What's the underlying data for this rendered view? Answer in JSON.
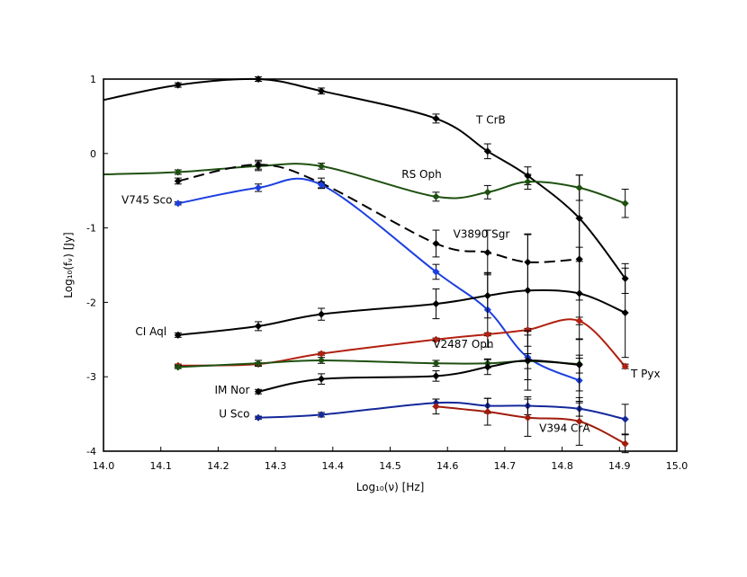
{
  "chart_data": {
    "type": "line",
    "title": "",
    "xlabel": "Log₁₀(ν) [Hz]",
    "ylabel": "Log₁₀(fᵥ) [Jy]",
    "xlim": [
      14.0,
      15.0
    ],
    "ylim": [
      -4,
      1
    ],
    "xticks": [
      14.0,
      14.1,
      14.2,
      14.3,
      14.4,
      14.5,
      14.6,
      14.7,
      14.8,
      14.9,
      15.0
    ],
    "xtick_labels": [
      "14.0",
      "14.1",
      "14.2",
      "14.3",
      "14.4",
      "14.5",
      "14.6",
      "14.7",
      "14.8",
      "14.9",
      "15.0"
    ],
    "yticks": [
      1,
      0,
      -1,
      -2,
      -3,
      -4
    ],
    "ytick_labels": [
      "1",
      "0",
      "-1",
      "-2",
      "-3",
      "-4"
    ],
    "grid": false,
    "series": [
      {
        "name": "T CrB",
        "color": "#000000",
        "dashed": false,
        "curve": [
          [
            14.0,
            0.72
          ],
          [
            14.13,
            0.92
          ],
          [
            14.27,
            1.0
          ],
          [
            14.38,
            0.84
          ],
          [
            14.58,
            0.47
          ],
          [
            14.67,
            0.03
          ],
          [
            14.74,
            -0.3
          ],
          [
            14.83,
            -0.87
          ],
          [
            14.91,
            -1.68
          ]
        ],
        "points": [
          [
            14.13,
            0.92,
            0.03
          ],
          [
            14.27,
            1.0,
            0.03
          ],
          [
            14.38,
            0.84,
            0.04
          ],
          [
            14.58,
            0.47,
            0.06
          ],
          [
            14.67,
            0.03,
            0.1
          ],
          [
            14.74,
            -0.3,
            0.12
          ],
          [
            14.83,
            -0.87,
            0.58
          ],
          [
            14.91,
            -1.68,
            0.2
          ]
        ]
      },
      {
        "name": "RS Oph",
        "color": "#1e5010",
        "dashed": false,
        "curve": [
          [
            14.0,
            -0.28
          ],
          [
            14.13,
            -0.25
          ],
          [
            14.27,
            -0.17
          ],
          [
            14.38,
            -0.17
          ],
          [
            14.58,
            -0.58
          ],
          [
            14.67,
            -0.52
          ],
          [
            14.74,
            -0.38
          ],
          [
            14.83,
            -0.46
          ],
          [
            14.91,
            -0.67
          ]
        ],
        "points": [
          [
            14.13,
            -0.25,
            0.03
          ],
          [
            14.27,
            -0.17,
            0.06
          ],
          [
            14.38,
            -0.17,
            0.04
          ],
          [
            14.58,
            -0.58,
            0.06
          ],
          [
            14.67,
            -0.52,
            0.09
          ],
          [
            14.74,
            -0.38,
            0.1
          ],
          [
            14.83,
            -0.46,
            0.17
          ],
          [
            14.91,
            -0.67,
            0.19
          ]
        ]
      },
      {
        "name": "V3890 Sgr",
        "color": "#000000",
        "dashed": true,
        "curve": [
          [
            14.13,
            -0.37
          ],
          [
            14.27,
            -0.15
          ],
          [
            14.38,
            -0.4
          ],
          [
            14.58,
            -1.21
          ],
          [
            14.67,
            -1.33
          ],
          [
            14.74,
            -1.46
          ],
          [
            14.83,
            -1.42
          ]
        ],
        "points": [
          [
            14.13,
            -0.37,
            0.04
          ],
          [
            14.27,
            -0.15,
            0.06
          ],
          [
            14.38,
            -0.4,
            0.07
          ],
          [
            14.58,
            -1.21,
            0.18
          ],
          [
            14.67,
            -1.33,
            0.3
          ],
          [
            14.74,
            -1.46,
            0.38
          ],
          [
            14.83,
            -1.42,
            0.55
          ]
        ]
      },
      {
        "name": "V745 Sco",
        "color": "#1b3fe0",
        "dashed": false,
        "curve": [
          [
            14.13,
            -0.67
          ],
          [
            14.27,
            -0.46
          ],
          [
            14.38,
            -0.42
          ],
          [
            14.58,
            -1.59
          ],
          [
            14.67,
            -2.1
          ],
          [
            14.74,
            -2.74
          ],
          [
            14.83,
            -3.05
          ]
        ],
        "points": [
          [
            14.13,
            -0.67,
            0.02
          ],
          [
            14.27,
            -0.46,
            0.05
          ],
          [
            14.38,
            -0.42,
            0.04
          ],
          [
            14.58,
            -1.59,
            0.1
          ],
          [
            14.67,
            -2.1,
            0.5
          ],
          [
            14.74,
            -2.74,
            0.3
          ],
          [
            14.83,
            -3.05,
            0.3
          ]
        ]
      },
      {
        "name": "CI Aql",
        "color": "#000000",
        "dashed": false,
        "curve": [
          [
            14.13,
            -2.44
          ],
          [
            14.27,
            -2.32
          ],
          [
            14.38,
            -2.16
          ],
          [
            14.58,
            -2.02
          ],
          [
            14.67,
            -1.91
          ],
          [
            14.74,
            -1.84
          ],
          [
            14.83,
            -1.88
          ],
          [
            14.91,
            -2.14
          ]
        ],
        "points": [
          [
            14.13,
            -2.44,
            0.03
          ],
          [
            14.27,
            -2.32,
            0.06
          ],
          [
            14.38,
            -2.16,
            0.08
          ],
          [
            14.58,
            -2.02,
            0.2
          ],
          [
            14.67,
            -1.91,
            0.3
          ],
          [
            14.74,
            -1.84,
            0.75
          ],
          [
            14.83,
            -1.88,
            0.62
          ],
          [
            14.91,
            -2.14,
            0.6
          ]
        ]
      },
      {
        "name": "T Pyx",
        "color": "#b22010",
        "dashed": false,
        "curve": [
          [
            14.13,
            -2.85
          ],
          [
            14.27,
            -2.83
          ],
          [
            14.38,
            -2.69
          ],
          [
            14.58,
            -2.5
          ],
          [
            14.67,
            -2.43
          ],
          [
            14.74,
            -2.37
          ],
          [
            14.83,
            -2.25
          ],
          [
            14.91,
            -2.86
          ]
        ],
        "points": [
          [
            14.13,
            -2.85,
            0.02
          ],
          [
            14.27,
            -2.83,
            0.02
          ],
          [
            14.38,
            -2.69,
            0.02
          ],
          [
            14.58,
            -2.5,
            0.02
          ],
          [
            14.67,
            -2.43,
            0.02
          ],
          [
            14.74,
            -2.37,
            0.02
          ],
          [
            14.83,
            -2.25,
            0.05
          ],
          [
            14.91,
            -2.86,
            0.03
          ]
        ]
      },
      {
        "name": "V2487 Oph",
        "color": "#1e5010",
        "dashed": false,
        "curve": [
          [
            14.13,
            -2.87
          ],
          [
            14.27,
            -2.82
          ],
          [
            14.38,
            -2.78
          ],
          [
            14.58,
            -2.82
          ],
          [
            14.67,
            -2.82
          ],
          [
            14.74,
            -2.79
          ],
          [
            14.83,
            -2.83
          ]
        ],
        "points": [
          [
            14.13,
            -2.87,
            0.02
          ],
          [
            14.27,
            -2.82,
            0.04
          ],
          [
            14.38,
            -2.78,
            0.04
          ],
          [
            14.58,
            -2.82,
            0.04
          ],
          [
            14.67,
            -2.82,
            0.06
          ],
          [
            14.74,
            -2.79,
            0.1
          ],
          [
            14.83,
            -2.83,
            0.12
          ]
        ]
      },
      {
        "name": "IM Nor",
        "color": "#000000",
        "dashed": false,
        "curve": [
          [
            14.27,
            -3.2
          ],
          [
            14.38,
            -3.03
          ],
          [
            14.58,
            -2.99
          ],
          [
            14.67,
            -2.87
          ],
          [
            14.74,
            -2.78
          ],
          [
            14.83,
            -2.84
          ]
        ],
        "points": [
          [
            14.27,
            -3.2,
            0.03
          ],
          [
            14.38,
            -3.03,
            0.07
          ],
          [
            14.58,
            -2.99,
            0.07
          ],
          [
            14.67,
            -2.87,
            0.1
          ],
          [
            14.74,
            -2.78,
            0.4
          ],
          [
            14.83,
            -2.84,
            0.35
          ]
        ]
      },
      {
        "name": "U Sco",
        "color": "#14289a",
        "dashed": false,
        "curve": [
          [
            14.27,
            -3.55
          ],
          [
            14.38,
            -3.51
          ],
          [
            14.58,
            -3.35
          ],
          [
            14.67,
            -3.39
          ],
          [
            14.74,
            -3.39
          ],
          [
            14.83,
            -3.43
          ],
          [
            14.91,
            -3.57
          ]
        ],
        "points": [
          [
            14.27,
            -3.55,
            0.02
          ],
          [
            14.38,
            -3.51,
            0.03
          ],
          [
            14.58,
            -3.35,
            0.05
          ],
          [
            14.67,
            -3.39,
            0.1
          ],
          [
            14.74,
            -3.39,
            0.12
          ],
          [
            14.83,
            -3.43,
            0.1
          ],
          [
            14.91,
            -3.57,
            0.2
          ]
        ]
      },
      {
        "name": "V394 CrA",
        "color": "#a01c0c",
        "dashed": false,
        "curve": [
          [
            14.58,
            -3.4
          ],
          [
            14.67,
            -3.47
          ],
          [
            14.74,
            -3.55
          ],
          [
            14.83,
            -3.6
          ],
          [
            14.91,
            -3.9
          ]
        ],
        "points": [
          [
            14.58,
            -3.4,
            0.1
          ],
          [
            14.67,
            -3.47,
            0.18
          ],
          [
            14.74,
            -3.55,
            0.25
          ],
          [
            14.83,
            -3.6,
            0.32
          ],
          [
            14.91,
            -3.9,
            0.12
          ]
        ]
      }
    ],
    "annotations": [
      {
        "series": "T CrB",
        "text": "T CrB",
        "x": 14.65,
        "y": 0.4,
        "anchor": "start"
      },
      {
        "series": "RS Oph",
        "text": "RS Oph",
        "x": 14.52,
        "y": -0.33,
        "anchor": "start"
      },
      {
        "series": "V745 Sco",
        "text": "V745 Sco",
        "x": 14.12,
        "y": -0.67,
        "anchor": "end"
      },
      {
        "series": "V3890 Sgr",
        "text": "V3890 Sgr",
        "x": 14.61,
        "y": -1.13,
        "anchor": "start"
      },
      {
        "series": "CI Aql",
        "text": "CI Aql",
        "x": 14.11,
        "y": -2.44,
        "anchor": "end"
      },
      {
        "series": "V2487 Oph",
        "text": "V2487 Oph",
        "x": 14.575,
        "y": -2.61,
        "anchor": "start"
      },
      {
        "series": "T Pyx",
        "text": "T Pyx",
        "x": 14.92,
        "y": -3.01,
        "anchor": "start"
      },
      {
        "series": "IM Nor",
        "text": "IM Nor",
        "x": 14.255,
        "y": -3.23,
        "anchor": "end"
      },
      {
        "series": "U Sco",
        "text": "U Sco",
        "x": 14.255,
        "y": -3.55,
        "anchor": "end"
      },
      {
        "series": "V394 CrA",
        "text": "V394 CrA",
        "x": 14.76,
        "y": -3.74,
        "anchor": "start"
      }
    ]
  }
}
